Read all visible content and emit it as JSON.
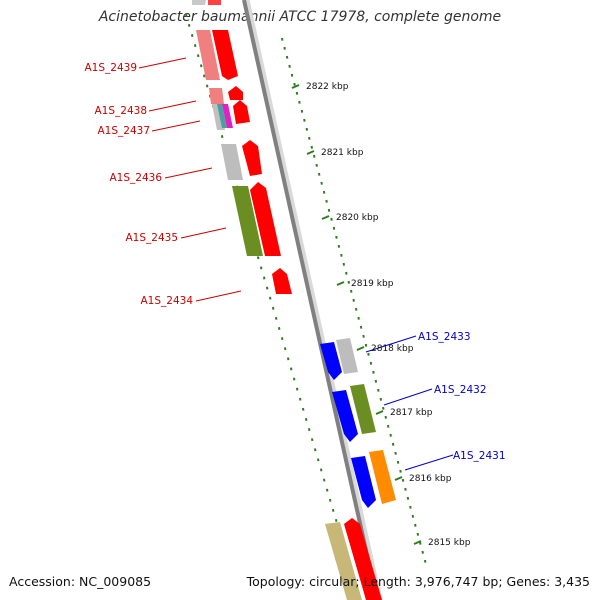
{
  "title": "Acinetobacter baumannii ATCC 17978, complete genome",
  "footer": {
    "accession": "Accession: NC_009085",
    "summary": "Topology: circular; Length: 3,976,747 bp; Genes: 3,435"
  },
  "ticks": [
    "2822 kbp",
    "2821 kbp",
    "2820 kbp",
    "2819 kbp",
    "2818 kbp",
    "2817 kbp",
    "2816 kbp",
    "2815 kbp"
  ],
  "genes_reverse": [
    "A1S_2439",
    "A1S_2438",
    "A1S_2437",
    "A1S_2436",
    "A1S_2435",
    "A1S_2434"
  ],
  "genes_forward": [
    "A1S_2433",
    "A1S_2432",
    "A1S_2431"
  ],
  "colors": {
    "backbone": "#808080",
    "tick_mark": "#2e7d1e",
    "reverse_label": "#cc0000",
    "forward_label": "#0000cc",
    "cds_red": "#ff0000",
    "cds_blue": "#0000ff",
    "gray": "#bdbdbd",
    "olive": "#6b8e23",
    "orange": "#ff8c00",
    "khaki": "#c8b878",
    "pink": "#f08080",
    "magenta": "#e020c0"
  }
}
